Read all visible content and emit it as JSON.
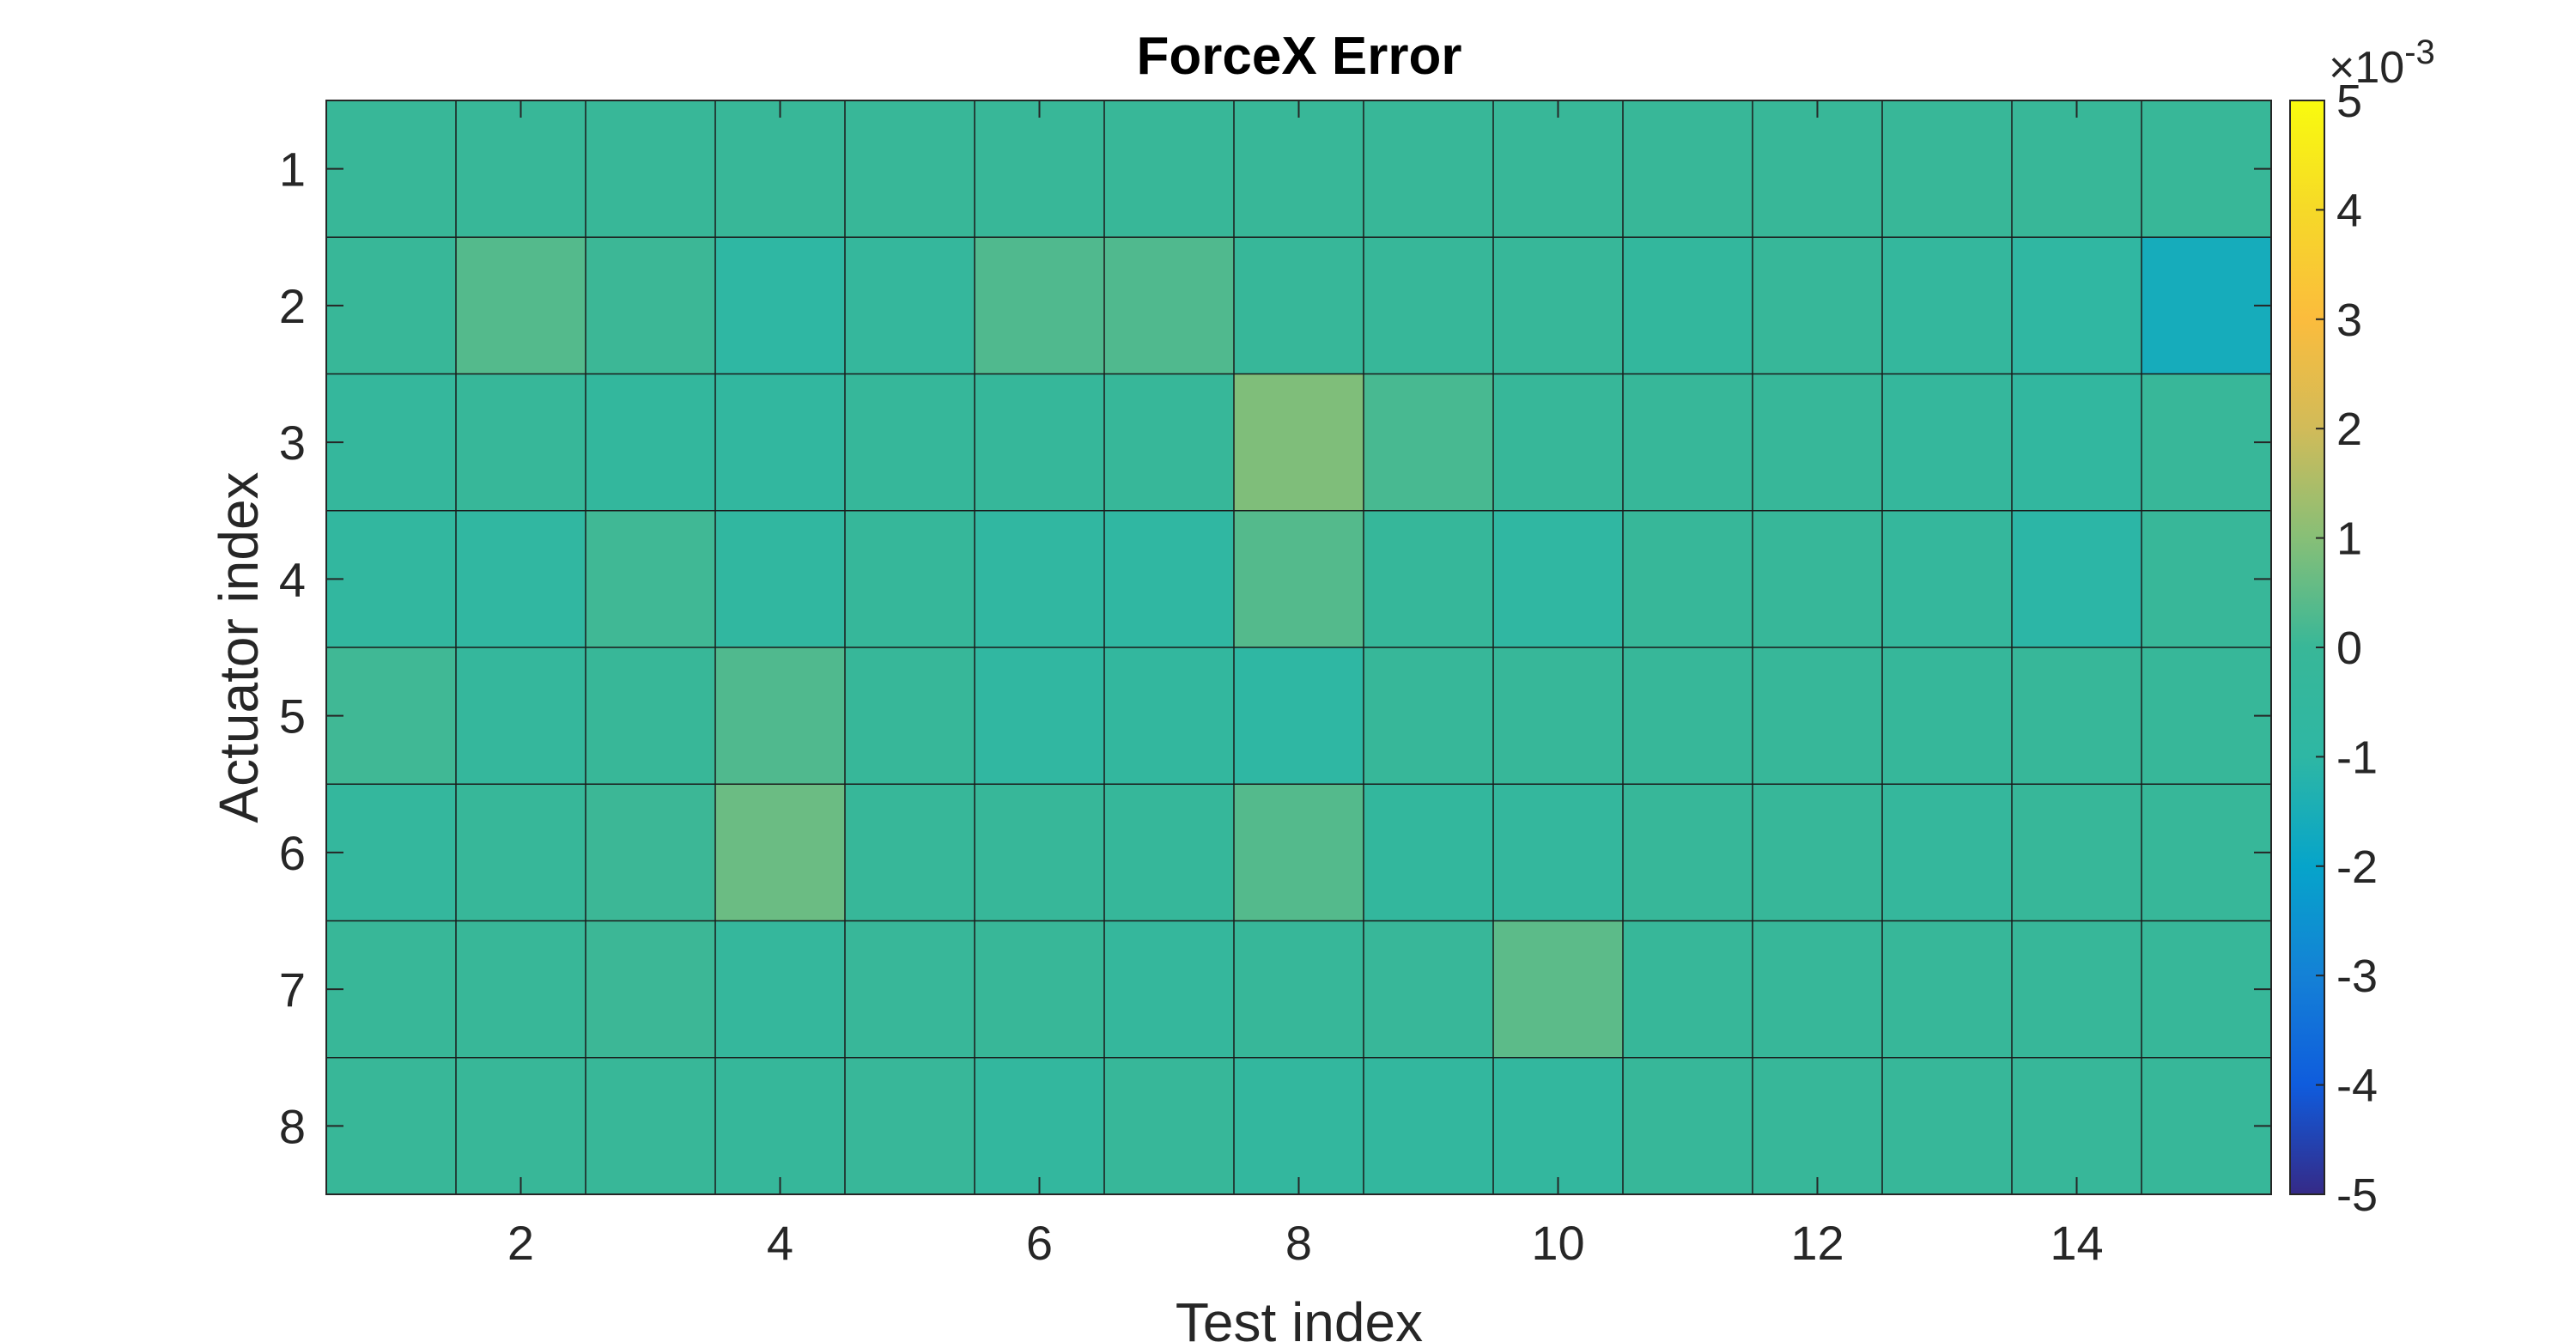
{
  "chart_data": {
    "type": "heatmap",
    "title": "ForceX Error",
    "xlabel": "Test index",
    "ylabel": "Actuator index",
    "x": [
      1,
      2,
      3,
      4,
      5,
      6,
      7,
      8,
      9,
      10,
      11,
      12,
      13,
      14,
      15
    ],
    "y": [
      1,
      2,
      3,
      4,
      5,
      6,
      7,
      8
    ],
    "x_tick_labels": [
      "2",
      "4",
      "6",
      "8",
      "10",
      "12",
      "14"
    ],
    "y_tick_labels": [
      "1",
      "2",
      "3",
      "4",
      "5",
      "6",
      "7",
      "8"
    ],
    "x_ticks": [
      2,
      4,
      6,
      8,
      10,
      12,
      14
    ],
    "y_ticks": [
      1,
      2,
      3,
      4,
      5,
      6,
      7,
      8
    ],
    "z_unit_scale": 0.001,
    "z": [
      [
        0.0,
        0.0,
        0.0,
        0.0,
        0.0,
        0.0,
        0.0,
        0.0,
        0.0,
        0.0,
        0.0,
        0.0,
        0.0,
        0.0,
        0.0
      ],
      [
        0.0,
        0.35,
        0.05,
        -0.9,
        -0.3,
        0.3,
        0.3,
        -0.1,
        -0.1,
        -0.1,
        -0.45,
        -0.1,
        -0.4,
        -0.8,
        -1.6
      ],
      [
        -0.3,
        -0.1,
        -0.45,
        -0.6,
        -0.2,
        -0.2,
        -0.1,
        0.9,
        0.2,
        -0.1,
        -0.1,
        -0.1,
        -0.3,
        -0.6,
        -0.05
      ],
      [
        -0.6,
        -0.75,
        0.1,
        -0.7,
        -0.2,
        -0.75,
        -0.8,
        0.35,
        -0.2,
        -0.8,
        -0.1,
        -0.1,
        -0.3,
        -1.05,
        -0.05
      ],
      [
        0.1,
        -0.3,
        0.0,
        0.3,
        -0.1,
        -0.75,
        -0.5,
        -0.9,
        -0.1,
        -0.1,
        -0.1,
        -0.1,
        -0.2,
        -0.1,
        -0.1
      ],
      [
        -0.4,
        -0.1,
        0.05,
        0.65,
        -0.1,
        -0.1,
        -0.2,
        0.35,
        -0.45,
        -0.4,
        -0.1,
        -0.1,
        -0.3,
        -0.1,
        -0.1
      ],
      [
        0.0,
        0.0,
        0.05,
        -0.35,
        -0.05,
        0.0,
        -0.35,
        -0.1,
        -0.05,
        0.45,
        -0.1,
        -0.1,
        -0.1,
        -0.1,
        -0.1
      ],
      [
        0.0,
        0.0,
        0.0,
        -0.2,
        -0.05,
        -0.5,
        -0.1,
        -0.5,
        -0.5,
        -0.5,
        -0.1,
        -0.1,
        -0.1,
        -0.1,
        -0.1
      ]
    ],
    "colorbar": {
      "colormap": "parula",
      "clim": [
        -5,
        5
      ],
      "tick_labels": [
        "5",
        "4",
        "3",
        "2",
        "1",
        "0",
        "-1",
        "-2",
        "-3",
        "-4",
        "-5"
      ],
      "tick_values": [
        5,
        4,
        3,
        2,
        1,
        0,
        -1,
        -2,
        -3,
        -4,
        -5
      ],
      "exponent_label": "×10",
      "exponent_power": "-3"
    },
    "grid": true
  }
}
